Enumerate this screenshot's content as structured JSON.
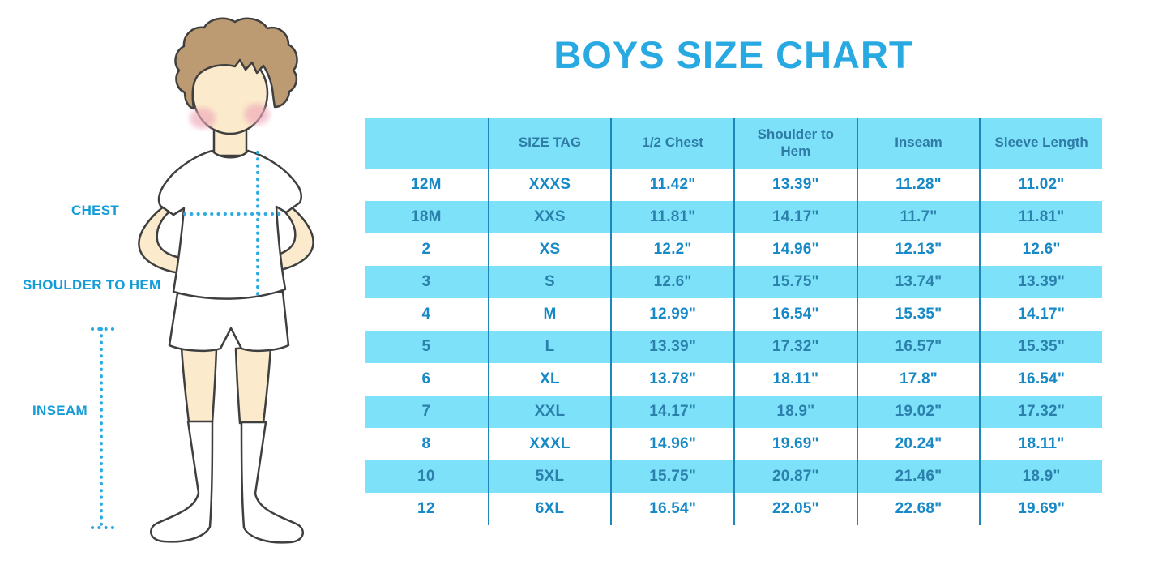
{
  "title": "BOYS SIZE CHART",
  "figure": {
    "description": "cartoon-boy-in-white-tshirt-shorts-and-socks",
    "labels": {
      "chest": "CHEST",
      "shoulder_to_hem": "SHOULDER TO HEM",
      "inseam": "INSEAM"
    }
  },
  "chart_data": {
    "type": "table",
    "title": "BOYS SIZE CHART",
    "columns": [
      "",
      "SIZE TAG",
      "1/2 Chest",
      "Shoulder to Hem",
      "Inseam",
      "Sleeve Length"
    ],
    "rows": [
      [
        "12M",
        "XXXS",
        "11.42\"",
        "13.39\"",
        "11.28\"",
        "11.02\""
      ],
      [
        "18M",
        "XXS",
        "11.81\"",
        "14.17\"",
        "11.7\"",
        "11.81\""
      ],
      [
        "2",
        "XS",
        "12.2\"",
        "14.96\"",
        "12.13\"",
        "12.6\""
      ],
      [
        "3",
        "S",
        "12.6\"",
        "15.75\"",
        "13.74\"",
        "13.39\""
      ],
      [
        "4",
        "M",
        "12.99\"",
        "16.54\"",
        "15.35\"",
        "14.17\""
      ],
      [
        "5",
        "L",
        "13.39\"",
        "17.32\"",
        "16.57\"",
        "15.35\""
      ],
      [
        "6",
        "XL",
        "13.78\"",
        "18.11\"",
        "17.8\"",
        "16.54\""
      ],
      [
        "7",
        "XXL",
        "14.17\"",
        "18.9\"",
        "19.02\"",
        "17.32\""
      ],
      [
        "8",
        "XXXL",
        "14.96\"",
        "19.69\"",
        "20.24\"",
        "18.11\""
      ],
      [
        "10",
        "5XL",
        "15.75\"",
        "20.87\"",
        "21.46\"",
        "18.9\""
      ],
      [
        "12",
        "6XL",
        "16.54\"",
        "22.05\"",
        "22.68\"",
        "19.69\""
      ]
    ],
    "layout": {
      "alternating_row_backgrounds": [
        "white",
        "cyan"
      ],
      "header_background": "cyan",
      "grid": "vertical-dividers-only"
    }
  },
  "colors": {
    "title_blue": "#29A9E1",
    "label_blue": "#149CD8",
    "table_cyan_bg": "#7DE1F9",
    "header_text": "#2E7BA6",
    "white_row_text": "#1689C6",
    "cyan_row_text": "#2B81AC",
    "divider": "#1E86B8",
    "dotted_line": "#29ABE2",
    "hair_brown": "#BC9A72",
    "skin": "#FBEACB",
    "blush_pink": "#EFA8B9",
    "outline": "#3F3F3F"
  }
}
